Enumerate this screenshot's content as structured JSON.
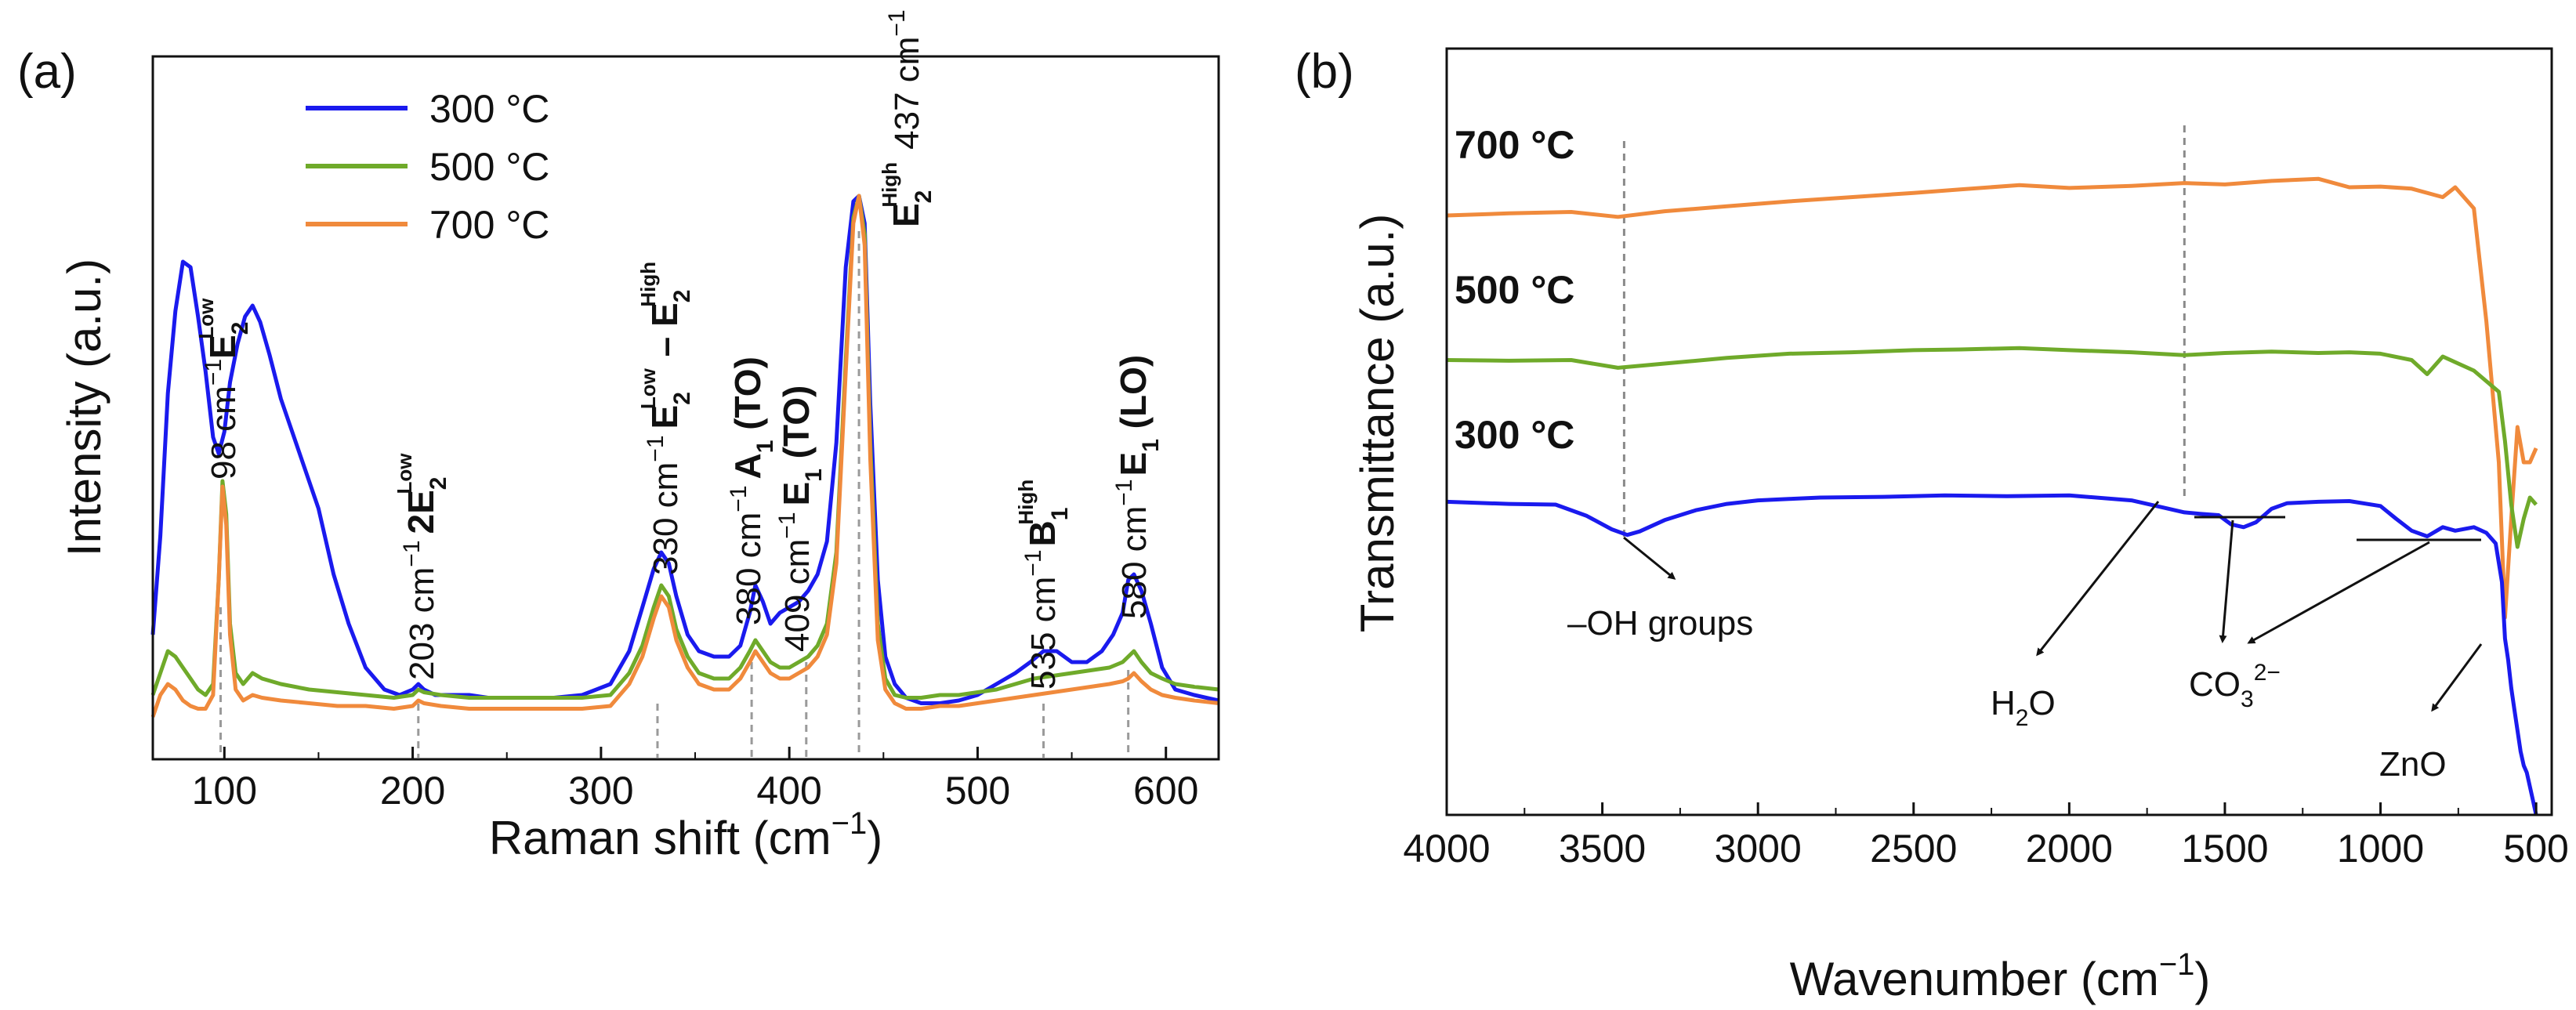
{
  "chart_data": [
    {
      "type": "line",
      "panel_label": "(a)",
      "xlabel_main": "Raman shift (cm",
      "xlabel_sup": "−1",
      "xlabel_close": ")",
      "ylabel": "Intensity (a.u.)",
      "xlim": [
        62,
        628
      ],
      "ylim": [
        0,
        100
      ],
      "x_ticks": [
        100,
        200,
        300,
        400,
        500,
        600
      ],
      "x_tick_labels": [
        "100",
        "200",
        "300",
        "400",
        "500",
        "600"
      ],
      "legend": {
        "placement": "top-left",
        "entries": [
          {
            "label": "300 °C",
            "color": "#1a1aee"
          },
          {
            "label": "500 °C",
            "color": "#6faa2a"
          },
          {
            "label": "700 °C",
            "color": "#f08a3c"
          }
        ]
      },
      "series": [
        {
          "name": "300 °C",
          "color": "#1a1aee",
          "x": [
            62,
            66,
            70,
            74,
            78,
            82,
            86,
            90,
            94,
            97,
            100,
            103,
            107,
            111,
            115,
            119,
            124,
            130,
            136,
            142,
            150,
            158,
            166,
            175,
            185,
            193,
            200,
            203,
            206,
            212,
            220,
            230,
            240,
            250,
            262,
            275,
            290,
            305,
            315,
            322,
            328,
            332,
            336,
            340,
            346,
            352,
            360,
            368,
            374,
            379,
            382,
            386,
            390,
            395,
            400,
            405,
            410,
            415,
            420,
            425,
            430,
            434,
            437,
            440,
            443,
            447,
            451,
            456,
            462,
            470,
            480,
            490,
            500,
            510,
            520,
            528,
            535,
            542,
            550,
            558,
            566,
            572,
            577,
            580,
            583,
            587,
            592,
            598,
            605,
            615,
            628
          ],
          "y": [
            20,
            38,
            64,
            79,
            88,
            87,
            78,
            68,
            56,
            53,
            57,
            66,
            73,
            78,
            80,
            77,
            71,
            63,
            57,
            51,
            43,
            31,
            22,
            14,
            10,
            9,
            10,
            11,
            10,
            9,
            9,
            9,
            8.5,
            8.5,
            8.5,
            8.5,
            9,
            11,
            17,
            25,
            32,
            35,
            33,
            27,
            20,
            17,
            16,
            16,
            18,
            24,
            29,
            26,
            22,
            24,
            25,
            26,
            28,
            31,
            37,
            55,
            87,
            99,
            100,
            95,
            62,
            30,
            16,
            11,
            8.5,
            7.5,
            7.5,
            8,
            9,
            11,
            13,
            15,
            17,
            17,
            15,
            15,
            17,
            20,
            24,
            30,
            31,
            28,
            22,
            14,
            10,
            9,
            8
          ]
        },
        {
          "name": "500 °C",
          "color": "#6faa2a",
          "x": [
            62,
            66,
            70,
            74,
            78,
            82,
            86,
            90,
            94,
            97,
            99,
            101,
            103,
            106,
            110,
            115,
            120,
            130,
            145,
            160,
            175,
            190,
            200,
            203,
            206,
            215,
            230,
            250,
            270,
            290,
            305,
            315,
            322,
            328,
            332,
            336,
            340,
            346,
            352,
            360,
            368,
            374,
            379,
            382,
            386,
            390,
            395,
            400,
            405,
            410,
            415,
            420,
            425,
            430,
            434,
            437,
            440,
            443,
            447,
            451,
            456,
            462,
            470,
            480,
            490,
            500,
            510,
            520,
            530,
            540,
            550,
            560,
            570,
            577,
            580,
            583,
            587,
            592,
            598,
            605,
            615,
            628
          ],
          "y": [
            9,
            13,
            17,
            16,
            14,
            12,
            10,
            9,
            11,
            30,
            48,
            42,
            22,
            13,
            11,
            13,
            12,
            11,
            10,
            9.5,
            9,
            8.5,
            9,
            10,
            9.5,
            9,
            8.5,
            8.5,
            8.5,
            8.5,
            9,
            13,
            18,
            25,
            29,
            27,
            21,
            16,
            13,
            12,
            12,
            14,
            17,
            19,
            17,
            15,
            14,
            14,
            15,
            16,
            18,
            22,
            35,
            70,
            96,
            100,
            93,
            55,
            22,
            12,
            9,
            8.5,
            8.5,
            9,
            9,
            9.5,
            10,
            11,
            12,
            12.5,
            13,
            13.5,
            14,
            15,
            16,
            17,
            15,
            13,
            12,
            11,
            10.5,
            10
          ]
        },
        {
          "name": "700 °C",
          "color": "#f08a3c",
          "x": [
            62,
            66,
            70,
            74,
            78,
            82,
            86,
            90,
            94,
            97,
            99,
            101,
            103,
            106,
            110,
            115,
            120,
            130,
            145,
            160,
            175,
            190,
            200,
            203,
            206,
            215,
            230,
            250,
            270,
            290,
            305,
            315,
            322,
            328,
            332,
            336,
            340,
            346,
            352,
            360,
            368,
            374,
            379,
            382,
            386,
            390,
            395,
            400,
            405,
            410,
            415,
            420,
            425,
            430,
            434,
            437,
            440,
            443,
            447,
            451,
            456,
            462,
            470,
            480,
            490,
            500,
            510,
            520,
            530,
            540,
            550,
            560,
            570,
            577,
            580,
            583,
            587,
            592,
            598,
            605,
            615,
            628
          ],
          "y": [
            5,
            9,
            11,
            10,
            8,
            7,
            6.5,
            6.5,
            9,
            30,
            47,
            40,
            20,
            10,
            8,
            9,
            8.5,
            8,
            7.5,
            7,
            7,
            6.5,
            7,
            8,
            7.5,
            7,
            6.5,
            6.5,
            6.5,
            6.5,
            7,
            11,
            16,
            23,
            27,
            25,
            19,
            14,
            11,
            10,
            10,
            12,
            15,
            17,
            15,
            13,
            12,
            12,
            13,
            14,
            16,
            20,
            33,
            68,
            95,
            100,
            91,
            52,
            19,
            10,
            7.5,
            6.5,
            6.5,
            7,
            7,
            7.5,
            8,
            8.5,
            9,
            9.5,
            10,
            10.5,
            11,
            11.5,
            12,
            13,
            11.5,
            10,
            9,
            8.5,
            8,
            7.5
          ]
        }
      ],
      "peaks": [
        {
          "x": 98,
          "label": "98 cm",
          "sup": "−1",
          "mode": "E",
          "mode_sup": "Low",
          "mode_sub": "2",
          "mode_tail": ""
        },
        {
          "x": 203,
          "label": "203 cm",
          "sup": "−1",
          "mode": "2E",
          "mode_sup": "Low",
          "mode_sub": "2",
          "mode_tail": ""
        },
        {
          "x": 330,
          "label": "330 cm",
          "sup": "−1",
          "mode": "E",
          "mode_sup": "Low",
          "mode_sub": "2",
          "mode_tail": " – E",
          "mode_sup2": "High",
          "mode_sub2": "2"
        },
        {
          "x": 380,
          "label": "380 cm",
          "sup": "−1",
          "mode": "A",
          "mode_sup": "",
          "mode_sub": "1",
          "mode_tail": " (TO)"
        },
        {
          "x": 409,
          "label": "409 cm",
          "sup": "−1",
          "mode": "E",
          "mode_sup": "",
          "mode_sub": "1",
          "mode_tail": " (TO)"
        },
        {
          "x": 437,
          "label": "437 cm",
          "sup": "−1",
          "mode": "E",
          "mode_sup": "High",
          "mode_sub": "2",
          "mode_tail": ""
        },
        {
          "x": 535,
          "label": "535 cm",
          "sup": "−1",
          "mode": "B",
          "mode_sup": "High",
          "mode_sub": "1",
          "mode_tail": ""
        },
        {
          "x": 580,
          "label": "580 cm",
          "sup": "−1",
          "mode": "E",
          "mode_sup": "",
          "mode_sub": "1",
          "mode_tail": " (LO)"
        }
      ]
    },
    {
      "type": "line",
      "panel_label": "(b)",
      "xlabel_main": "Wavenumber (cm",
      "xlabel_sup": "−1",
      "xlabel_close": ")",
      "ylabel": "Transmittance (a.u.)",
      "xlim": [
        4000,
        450
      ],
      "ylim": [
        0,
        100
      ],
      "x_ticks": [
        4000,
        3500,
        3000,
        2500,
        2000,
        1500,
        1000,
        500
      ],
      "x_tick_labels": [
        "4000",
        "3500",
        "3000",
        "2500",
        "2000",
        "1500",
        "1000",
        "500"
      ],
      "reference_lines": [
        3430,
        1630
      ],
      "series": [
        {
          "name": "700 °C",
          "label": "700 °C",
          "color": "#f08a3c",
          "x": [
            4000,
            3800,
            3600,
            3450,
            3300,
            3100,
            2900,
            2700,
            2500,
            2350,
            2160,
            2000,
            1800,
            1630,
            1500,
            1350,
            1200,
            1100,
            1000,
            900,
            800,
            760,
            700,
            660,
            620,
            600,
            580,
            560,
            540,
            520,
            500
          ],
          "y": [
            85,
            85.3,
            85.5,
            84.8,
            85.6,
            86.3,
            87,
            87.6,
            88.2,
            88.7,
            89.3,
            88.9,
            89.2,
            89.6,
            89.4,
            89.9,
            90.2,
            89,
            89.1,
            88.8,
            87.6,
            89,
            86,
            70,
            50,
            28,
            42,
            55,
            50,
            50,
            52
          ]
        },
        {
          "name": "500 °C",
          "label": "500 °C",
          "color": "#6faa2a",
          "x": [
            4000,
            3800,
            3600,
            3450,
            3300,
            3100,
            2900,
            2700,
            2500,
            2350,
            2160,
            2000,
            1800,
            1630,
            1500,
            1350,
            1200,
            1100,
            1000,
            900,
            850,
            800,
            750,
            700,
            660,
            620,
            600,
            580,
            560,
            540,
            520,
            500
          ],
          "y": [
            64.5,
            64.4,
            64.5,
            63.4,
            64,
            64.8,
            65.4,
            65.6,
            65.9,
            66,
            66.2,
            65.9,
            65.6,
            65.2,
            65.5,
            65.7,
            65.5,
            65.6,
            65.4,
            64.5,
            62.5,
            65,
            64,
            63,
            61.5,
            60,
            53,
            44,
            38,
            42,
            45,
            44
          ]
        },
        {
          "name": "300 °C",
          "label": "300 °C",
          "color": "#1a1aee",
          "x": [
            4000,
            3800,
            3650,
            3550,
            3470,
            3420,
            3380,
            3300,
            3200,
            3100,
            3000,
            2900,
            2800,
            2600,
            2400,
            2200,
            2000,
            1800,
            1700,
            1630,
            1580,
            1520,
            1480,
            1440,
            1400,
            1350,
            1300,
            1200,
            1100,
            1000,
            950,
            900,
            850,
            800,
            760,
            700,
            660,
            630,
            610,
            600,
            590,
            580,
            570,
            560,
            550,
            540,
            530,
            520,
            510,
            500
          ],
          "y": [
            44.4,
            44.1,
            44,
            42.4,
            40.5,
            39.7,
            40.2,
            41.8,
            43.2,
            44.1,
            44.6,
            44.8,
            45,
            45.1,
            45.3,
            45.2,
            45.3,
            44.6,
            43.6,
            42.9,
            42.7,
            42.5,
            41.2,
            40.8,
            41.5,
            43.4,
            44.2,
            44.4,
            44.5,
            43.8,
            42,
            40.3,
            39.5,
            40.8,
            40.3,
            40.8,
            40,
            38.5,
            33,
            25,
            22,
            18,
            15,
            12,
            9,
            7,
            6,
            4,
            2,
            0
          ]
        }
      ],
      "annotations": [
        {
          "text": "–OH groups"
        },
        {
          "text_main": "H",
          "text_sub": "2",
          "text_tail": "O"
        },
        {
          "text_main": "CO",
          "text_sub": "3",
          "text_sup": "2−"
        },
        {
          "text_main": "ZnO"
        }
      ]
    }
  ]
}
